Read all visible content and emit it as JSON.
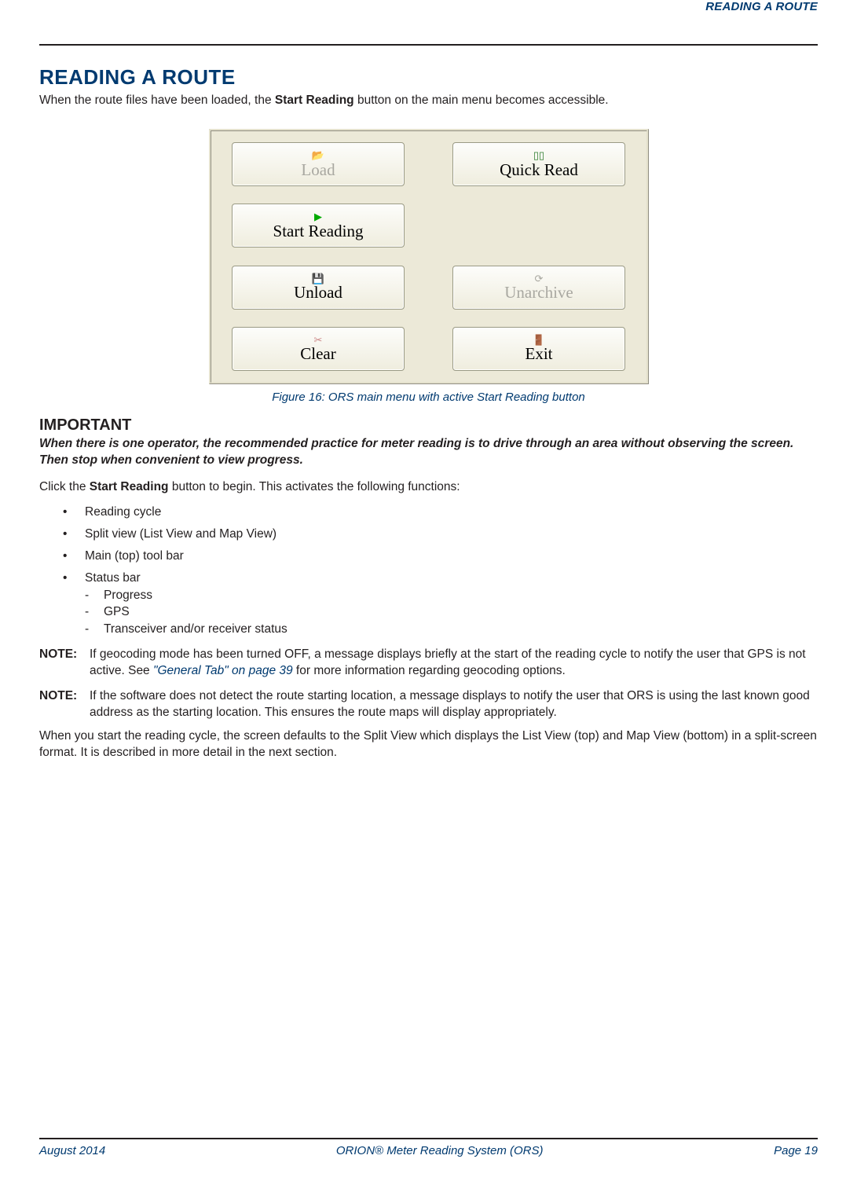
{
  "header": {
    "running_title": "READING A ROUTE"
  },
  "title": "READING A ROUTE",
  "intro_pre": "When the route files have been loaded, the ",
  "intro_bold": "Start Reading",
  "intro_post": " button on the main menu becomes accessible.",
  "screenshot": {
    "bg": "#ece9d8",
    "buttons": {
      "load": {
        "label": "Load",
        "enabled": false
      },
      "quick_read": {
        "label": "Quick Read",
        "enabled": true
      },
      "start_read": {
        "label": "Start Reading",
        "enabled": true
      },
      "unload": {
        "label": "Unload",
        "enabled": true
      },
      "unarchive": {
        "label": "Unarchive",
        "enabled": false
      },
      "clear": {
        "label": "Clear",
        "enabled": true
      },
      "exit": {
        "label": "Exit",
        "enabled": true
      }
    }
  },
  "figure_caption": "Figure 16:  ORS main menu with active Start Reading button",
  "important_heading": "IMPORTANT",
  "important_body": "When there is one operator, the recommended practice for meter reading is to drive through an area without observing the screen. Then stop when convenient to view progress.",
  "click_pre": "Click the ",
  "click_bold": "Start Reading",
  "click_post": " button to begin. This activates the following functions:",
  "bullets": {
    "b1": "Reading cycle",
    "b2": "Split view (List View and Map View)",
    "b3": "Main (top) tool bar",
    "b4": "Status bar",
    "s1": "Progress",
    "s2": "GPS",
    "s3": "Transceiver and/or receiver status"
  },
  "note1": {
    "label": "NOTE:",
    "pre": "If geocoding mode has been turned OFF, a message displays briefly at the start of the reading cycle to notify the user that GPS is not active. See ",
    "xref": "\"General Tab\" on page 39",
    "post": " for more information regarding geocoding options."
  },
  "note2": {
    "label": "NOTE:",
    "body": "If the software does not detect the route starting location, a message displays to notify the user that ORS is using the last known good address as the starting location. This ensures the route maps will display appropriately."
  },
  "closing": "When you start the reading cycle, the screen defaults to the Split View which displays the List View (top) and Map View (bottom) in a split-screen format. It is described in more detail in the next section.",
  "footer": {
    "left": "August 2014",
    "center": "ORION® Meter Reading System (ORS)",
    "right": "Page 19"
  }
}
